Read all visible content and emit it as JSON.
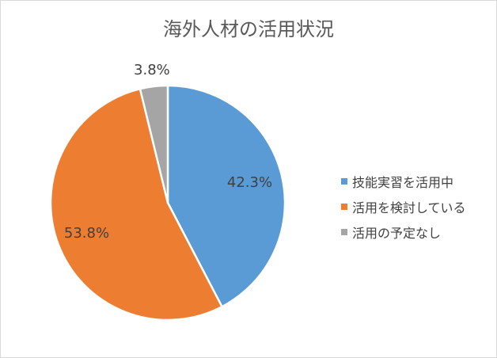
{
  "chart_data": {
    "type": "pie",
    "title": "海外人材の活用状況",
    "categories": [
      "技能実習を活用中",
      "活用を検討している",
      "活用の予定なし"
    ],
    "values": [
      42.3,
      53.8,
      3.8
    ],
    "labels": [
      "42.3%",
      "53.8%",
      "3.8%"
    ],
    "colors": [
      "#5b9bd5",
      "#ed7d31",
      "#a5a5a5"
    ],
    "start_angle": "12 o'clock",
    "direction": "clockwise",
    "legend_position": "right"
  }
}
